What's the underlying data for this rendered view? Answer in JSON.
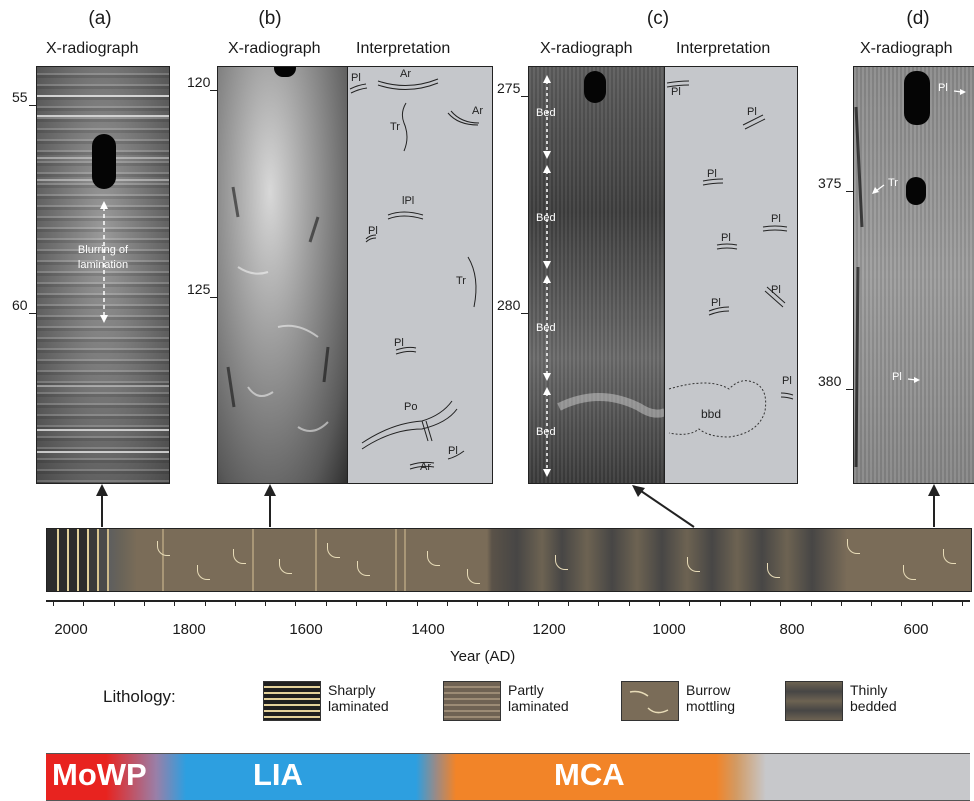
{
  "panels": {
    "a": {
      "letter": "(a)",
      "title": "X-radiograph",
      "depths": [
        "55",
        "60"
      ],
      "note_line1": "Blurring of",
      "note_line2": "lamination"
    },
    "b": {
      "letter": "(b)",
      "title_xr": "X-radiograph",
      "title_interp": "Interpretation",
      "depths": [
        "120",
        "125"
      ],
      "labels": [
        "Pl",
        "Ar",
        "Ar",
        "Tr",
        "lPl",
        "Pl",
        "Tr",
        "Pl",
        "Po",
        "Ar",
        "Pl"
      ]
    },
    "c": {
      "letter": "(c)",
      "title_xr": "X-radiograph",
      "title_interp": "Interpretation",
      "depths": [
        "275",
        "280"
      ],
      "bed_label": "Bed",
      "labels": [
        "Pl",
        "Pl",
        "Pl",
        "Pl",
        "Pl",
        "Pl",
        "Pl",
        "Pl",
        "bbd"
      ]
    },
    "d": {
      "letter": "(d)",
      "title": "X-radiograph",
      "depths": [
        "375",
        "380"
      ],
      "labels": [
        "Pl",
        "Tr",
        "Pl"
      ]
    }
  },
  "axis": {
    "title": "Year (AD)",
    "tick_labels": [
      "2000",
      "1800",
      "1600",
      "1400",
      "1200",
      "1000",
      "800",
      "600"
    ]
  },
  "legend": {
    "title": "Lithology:",
    "items": [
      {
        "line1": "Sharply",
        "line2": "laminated"
      },
      {
        "line1": "Partly",
        "line2": "laminated"
      },
      {
        "line1": "Burrow",
        "line2": "mottling"
      },
      {
        "line1": "Thinly",
        "line2": "bedded"
      }
    ]
  },
  "periods": [
    {
      "label": "MoWP",
      "color": "#e8231f"
    },
    {
      "label": "LIA",
      "color": "#2d9fe0"
    },
    {
      "label": "MCA",
      "color": "#f28428"
    }
  ]
}
